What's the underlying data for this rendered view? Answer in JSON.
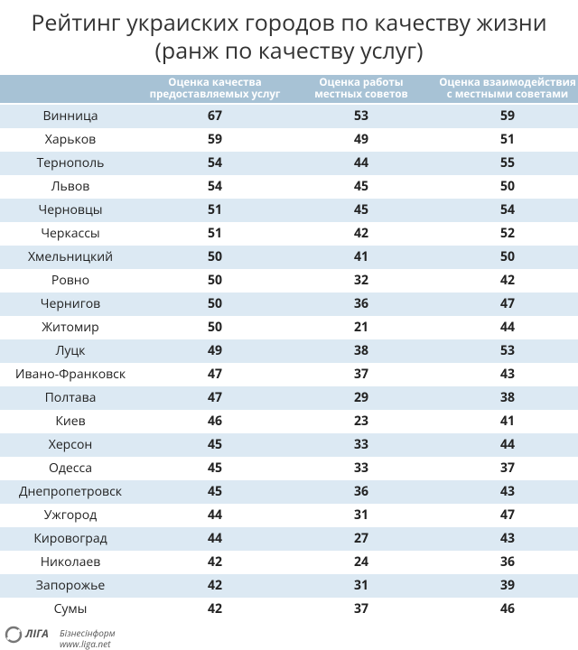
{
  "header": {
    "title": [
      "Рейтинг украиских городов по качеству жизни",
      "(ранж по качеству услуг)"
    ]
  },
  "table": {
    "columns": [
      [
        "Оценка качества",
        "предоставляемых услуг"
      ],
      [
        "Оценка работы",
        "местных советов"
      ],
      [
        "Оценка взаимодействия",
        "с местными советами"
      ]
    ],
    "rows": [
      [
        "Винница",
        67,
        53,
        59
      ],
      [
        "Харьков",
        59,
        49,
        51
      ],
      [
        "Тернополь",
        54,
        44,
        55
      ],
      [
        "Львов",
        54,
        45,
        50
      ],
      [
        "Черновцы",
        51,
        45,
        54
      ],
      [
        "Черкассы",
        51,
        42,
        52
      ],
      [
        "Хмельницкий",
        50,
        41,
        50
      ],
      [
        "Ровно",
        50,
        32,
        42
      ],
      [
        "Чернигов",
        50,
        36,
        47
      ],
      [
        "Житомир",
        50,
        21,
        44
      ],
      [
        "Луцк",
        49,
        38,
        53
      ],
      [
        "Ивано-Франковск",
        47,
        37,
        43
      ],
      [
        "Полтава",
        47,
        29,
        38
      ],
      [
        "Киев",
        46,
        23,
        41
      ],
      [
        "Херсон",
        45,
        33,
        44
      ],
      [
        "Одесса",
        45,
        33,
        37
      ],
      [
        "Днепропетровск",
        45,
        36,
        43
      ],
      [
        "Ужгород",
        44,
        31,
        47
      ],
      [
        "Кировоград",
        44,
        27,
        43
      ],
      [
        "Николаев",
        42,
        24,
        36
      ],
      [
        "Запорожье",
        42,
        31,
        39
      ],
      [
        "Сумы",
        42,
        37,
        46
      ]
    ]
  },
  "footer": {
    "logo": "ЛIГА",
    "brand": "Бізнесінформ",
    "url": "www.liga.net"
  }
}
